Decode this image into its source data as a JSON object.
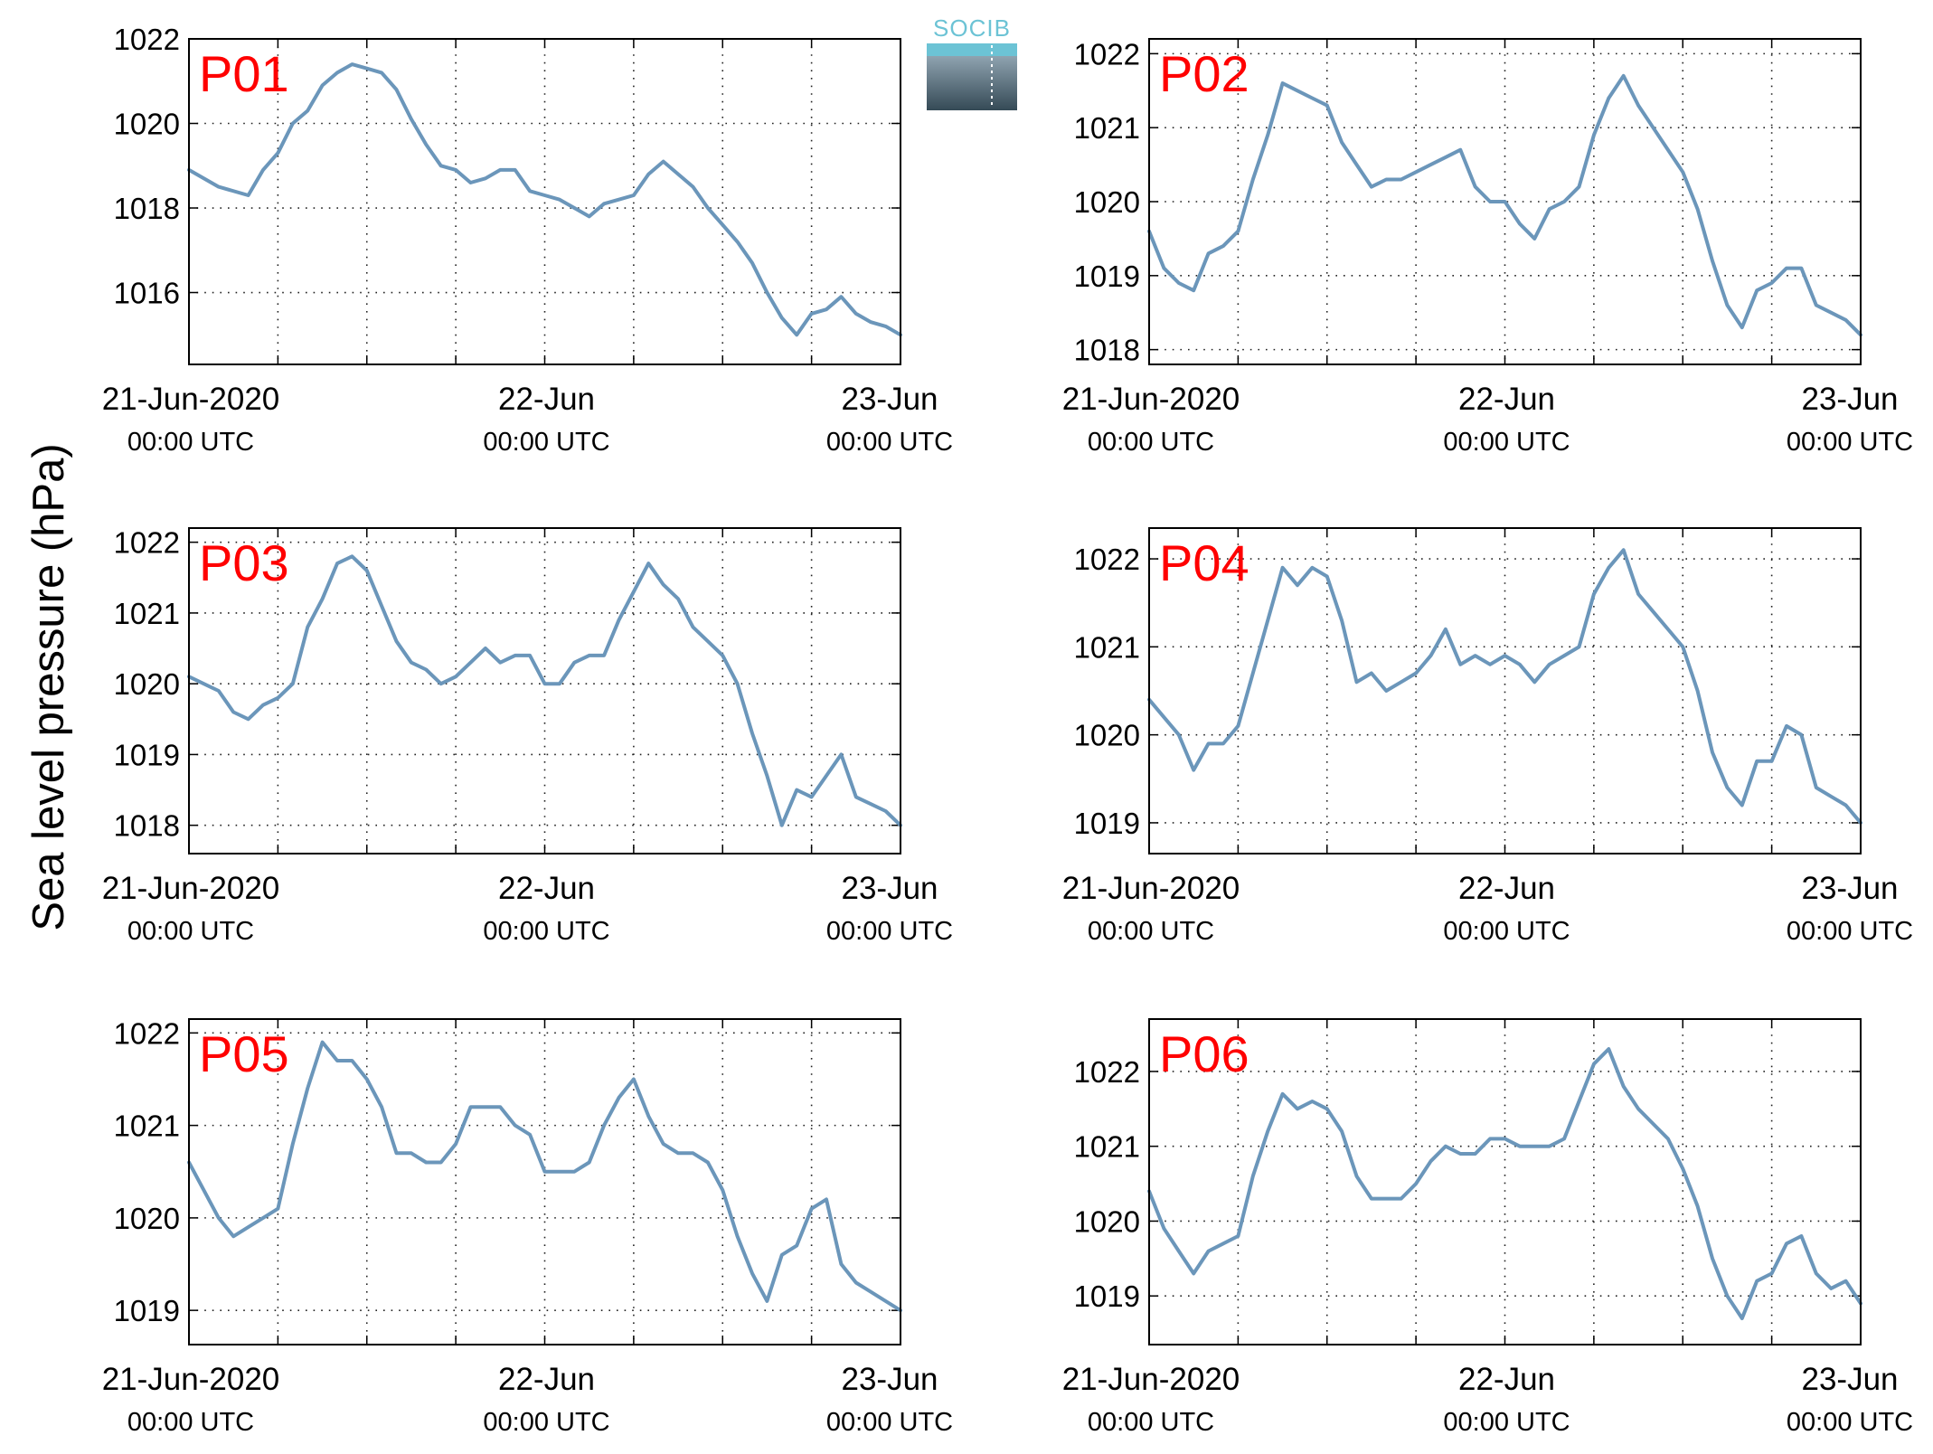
{
  "figure": {
    "ylabel": "Sea level pressure (hPa)",
    "line_color": "#6b96ba",
    "label_color": "#ff0000",
    "logo_text": "SOCIB"
  },
  "chart_data": [
    {
      "type": "line",
      "title": "P01",
      "ylim": [
        1014.3,
        1022.0
      ],
      "yticks": [
        1016,
        1018,
        1020,
        1022
      ],
      "xlim": [
        "2020-06-21 00:00",
        "2020-06-23 00:00"
      ],
      "xticks": [
        {
          "line1": "21-Jun-2020",
          "line2": "00:00 UTC"
        },
        {
          "line1": "22-Jun",
          "line2": "00:00 UTC"
        },
        {
          "line1": "23-Jun",
          "line2": "00:00 UTC"
        }
      ],
      "grid": true,
      "series": [
        {
          "x_hours": [
            0,
            2,
            4,
            5,
            6,
            7,
            8,
            9,
            10,
            11,
            12,
            13,
            14,
            15,
            16,
            17,
            18,
            19,
            20,
            21,
            22,
            23,
            24,
            25,
            26,
            27,
            28,
            29,
            30,
            31,
            32,
            33,
            34,
            35,
            36,
            37,
            38,
            39,
            40,
            41,
            42,
            43,
            44,
            45,
            46,
            47,
            48
          ],
          "y": [
            1018.9,
            1018.5,
            1018.3,
            1018.9,
            1019.3,
            1020.0,
            1020.3,
            1020.9,
            1021.2,
            1021.4,
            1021.3,
            1021.2,
            1020.8,
            1020.1,
            1019.5,
            1019.0,
            1018.9,
            1018.6,
            1018.7,
            1018.9,
            1018.9,
            1018.4,
            1018.3,
            1018.2,
            1018.0,
            1017.8,
            1018.1,
            1018.2,
            1018.3,
            1018.8,
            1019.1,
            1018.8,
            1018.5,
            1018.0,
            1017.6,
            1017.2,
            1016.7,
            1016.0,
            1015.4,
            1015.0,
            1015.5,
            1015.6,
            1015.9,
            1015.5,
            1015.3,
            1015.2,
            1015.0
          ]
        }
      ]
    },
    {
      "type": "line",
      "title": "P02",
      "ylim": [
        1017.8,
        1022.2
      ],
      "yticks": [
        1018,
        1019,
        1020,
        1021,
        1022
      ],
      "xlim": [
        "2020-06-21 00:00",
        "2020-06-23 00:00"
      ],
      "xticks": [
        {
          "line1": "21-Jun-2020",
          "line2": "00:00 UTC"
        },
        {
          "line1": "22-Jun",
          "line2": "00:00 UTC"
        },
        {
          "line1": "23-Jun",
          "line2": "00:00 UTC"
        }
      ],
      "grid": true,
      "series": [
        {
          "x_hours": [
            0,
            1,
            2,
            3,
            4,
            5,
            6,
            7,
            8,
            9,
            10,
            11,
            12,
            13,
            14,
            15,
            16,
            17,
            18,
            19,
            20,
            21,
            22,
            23,
            24,
            25,
            26,
            27,
            28,
            29,
            30,
            31,
            32,
            33,
            34,
            35,
            36,
            37,
            38,
            39,
            40,
            41,
            42,
            43,
            44,
            45,
            46,
            47,
            48
          ],
          "y": [
            1019.6,
            1019.1,
            1018.9,
            1018.8,
            1019.3,
            1019.4,
            1019.6,
            1020.3,
            1020.9,
            1021.6,
            1021.5,
            1021.4,
            1021.3,
            1020.8,
            1020.5,
            1020.2,
            1020.3,
            1020.3,
            1020.4,
            1020.5,
            1020.6,
            1020.7,
            1020.2,
            1020.0,
            1020.0,
            1019.7,
            1019.5,
            1019.9,
            1020.0,
            1020.2,
            1020.9,
            1021.4,
            1021.7,
            1021.3,
            1021.0,
            1020.7,
            1020.4,
            1019.9,
            1019.2,
            1018.6,
            1018.3,
            1018.8,
            1018.9,
            1019.1,
            1019.1,
            1018.6,
            1018.5,
            1018.4,
            1018.2
          ]
        }
      ]
    },
    {
      "type": "line",
      "title": "P03",
      "ylim": [
        1017.6,
        1022.2
      ],
      "yticks": [
        1018,
        1019,
        1020,
        1021,
        1022
      ],
      "xlim": [
        "2020-06-21 00:00",
        "2020-06-23 00:00"
      ],
      "xticks": [
        {
          "line1": "21-Jun-2020",
          "line2": "00:00 UTC"
        },
        {
          "line1": "22-Jun",
          "line2": "00:00 UTC"
        },
        {
          "line1": "23-Jun",
          "line2": "00:00 UTC"
        }
      ],
      "grid": true,
      "series": [
        {
          "x_hours": [
            0,
            1,
            2,
            3,
            4,
            5,
            6,
            7,
            8,
            9,
            10,
            11,
            12,
            13,
            14,
            15,
            16,
            17,
            18,
            19,
            20,
            21,
            22,
            23,
            24,
            25,
            26,
            27,
            28,
            29,
            30,
            31,
            32,
            33,
            34,
            35,
            36,
            37,
            38,
            39,
            40,
            41,
            42,
            43,
            44,
            45,
            46,
            47,
            48
          ],
          "y": [
            1020.1,
            1020.0,
            1019.9,
            1019.6,
            1019.5,
            1019.7,
            1019.8,
            1020.0,
            1020.8,
            1021.2,
            1021.7,
            1021.8,
            1021.6,
            1021.1,
            1020.6,
            1020.3,
            1020.2,
            1020.0,
            1020.1,
            1020.3,
            1020.5,
            1020.3,
            1020.4,
            1020.4,
            1020.0,
            1020.0,
            1020.3,
            1020.4,
            1020.4,
            1020.9,
            1021.3,
            1021.7,
            1021.4,
            1021.2,
            1020.8,
            1020.6,
            1020.4,
            1020.0,
            1019.3,
            1018.7,
            1018.0,
            1018.5,
            1018.4,
            1018.7,
            1019.0,
            1018.4,
            1018.3,
            1018.2,
            1018.0
          ]
        }
      ]
    },
    {
      "type": "line",
      "title": "P04",
      "ylim": [
        1018.65,
        1022.35
      ],
      "yticks": [
        1019,
        1020,
        1021,
        1022
      ],
      "xlim": [
        "2020-06-21 00:00",
        "2020-06-23 00:00"
      ],
      "xticks": [
        {
          "line1": "21-Jun-2020",
          "line2": "00:00 UTC"
        },
        {
          "line1": "22-Jun",
          "line2": "00:00 UTC"
        },
        {
          "line1": "23-Jun",
          "line2": "00:00 UTC"
        }
      ],
      "grid": true,
      "series": [
        {
          "x_hours": [
            0,
            1,
            2,
            3,
            4,
            5,
            6,
            7,
            8,
            9,
            10,
            11,
            12,
            13,
            14,
            15,
            16,
            17,
            18,
            19,
            20,
            21,
            22,
            23,
            24,
            25,
            26,
            27,
            28,
            29,
            30,
            31,
            32,
            33,
            34,
            35,
            36,
            37,
            38,
            39,
            40,
            41,
            42,
            43,
            44,
            45,
            46,
            47,
            48
          ],
          "y": [
            1020.4,
            1020.2,
            1020.0,
            1019.6,
            1019.9,
            1019.9,
            1020.1,
            1020.7,
            1021.3,
            1021.9,
            1021.7,
            1021.9,
            1021.8,
            1021.3,
            1020.6,
            1020.7,
            1020.5,
            1020.6,
            1020.7,
            1020.9,
            1021.2,
            1020.8,
            1020.9,
            1020.8,
            1020.9,
            1020.8,
            1020.6,
            1020.8,
            1020.9,
            1021.0,
            1021.6,
            1021.9,
            1022.1,
            1021.6,
            1021.4,
            1021.2,
            1021.0,
            1020.5,
            1019.8,
            1019.4,
            1019.2,
            1019.7,
            1019.7,
            1020.1,
            1020.0,
            1019.4,
            1019.3,
            1019.2,
            1019.0
          ]
        }
      ]
    },
    {
      "type": "line",
      "title": "P05",
      "ylim": [
        1018.63,
        1022.15
      ],
      "yticks": [
        1019,
        1020,
        1021,
        1022
      ],
      "xlim": [
        "2020-06-21 00:00",
        "2020-06-23 00:00"
      ],
      "xticks": [
        {
          "line1": "21-Jun-2020",
          "line2": "00:00 UTC"
        },
        {
          "line1": "22-Jun",
          "line2": "00:00 UTC"
        },
        {
          "line1": "23-Jun",
          "line2": "00:00 UTC"
        }
      ],
      "grid": true,
      "series": [
        {
          "x_hours": [
            0,
            1,
            2,
            3,
            4,
            5,
            6,
            7,
            8,
            9,
            10,
            11,
            12,
            13,
            14,
            15,
            16,
            17,
            18,
            19,
            20,
            21,
            22,
            23,
            24,
            25,
            26,
            27,
            28,
            29,
            30,
            31,
            32,
            33,
            34,
            35,
            36,
            37,
            38,
            39,
            40,
            41,
            42,
            43,
            44,
            45,
            46,
            47,
            48
          ],
          "y": [
            1020.6,
            1020.3,
            1020.0,
            1019.8,
            1019.9,
            1020.0,
            1020.1,
            1020.8,
            1021.4,
            1021.9,
            1021.7,
            1021.7,
            1021.5,
            1021.2,
            1020.7,
            1020.7,
            1020.6,
            1020.6,
            1020.8,
            1021.2,
            1021.2,
            1021.2,
            1021.0,
            1020.9,
            1020.5,
            1020.5,
            1020.5,
            1020.6,
            1021.0,
            1021.3,
            1021.5,
            1021.1,
            1020.8,
            1020.7,
            1020.7,
            1020.6,
            1020.3,
            1019.8,
            1019.4,
            1019.1,
            1019.6,
            1019.7,
            1020.1,
            1020.2,
            1019.5,
            1019.3,
            1019.2,
            1019.1,
            1019.0
          ]
        }
      ]
    },
    {
      "type": "line",
      "title": "P06",
      "ylim": [
        1018.35,
        1022.7
      ],
      "yticks": [
        1019,
        1020,
        1021,
        1022
      ],
      "xlim": [
        "2020-06-21 00:00",
        "2020-06-23 00:00"
      ],
      "xticks": [
        {
          "line1": "21-Jun-2020",
          "line2": "00:00 UTC"
        },
        {
          "line1": "22-Jun",
          "line2": "00:00 UTC"
        },
        {
          "line1": "23-Jun",
          "line2": "00:00 UTC"
        }
      ],
      "grid": true,
      "series": [
        {
          "x_hours": [
            0,
            1,
            2,
            3,
            4,
            5,
            6,
            7,
            8,
            9,
            10,
            11,
            12,
            13,
            14,
            15,
            16,
            17,
            18,
            19,
            20,
            21,
            22,
            23,
            24,
            25,
            26,
            27,
            28,
            29,
            30,
            31,
            32,
            33,
            34,
            35,
            36,
            37,
            38,
            39,
            40,
            41,
            42,
            43,
            44,
            45,
            46,
            47,
            48
          ],
          "y": [
            1020.4,
            1019.9,
            1019.6,
            1019.3,
            1019.6,
            1019.7,
            1019.8,
            1020.6,
            1021.2,
            1021.7,
            1021.5,
            1021.6,
            1021.5,
            1021.2,
            1020.6,
            1020.3,
            1020.3,
            1020.3,
            1020.5,
            1020.8,
            1021.0,
            1020.9,
            1020.9,
            1021.1,
            1021.1,
            1021.0,
            1021.0,
            1021.0,
            1021.1,
            1021.6,
            1022.1,
            1022.3,
            1021.8,
            1021.5,
            1021.3,
            1021.1,
            1020.7,
            1020.2,
            1019.5,
            1019.0,
            1018.7,
            1019.2,
            1019.3,
            1019.7,
            1019.8,
            1019.3,
            1019.1,
            1019.2,
            1018.9
          ]
        }
      ]
    }
  ]
}
